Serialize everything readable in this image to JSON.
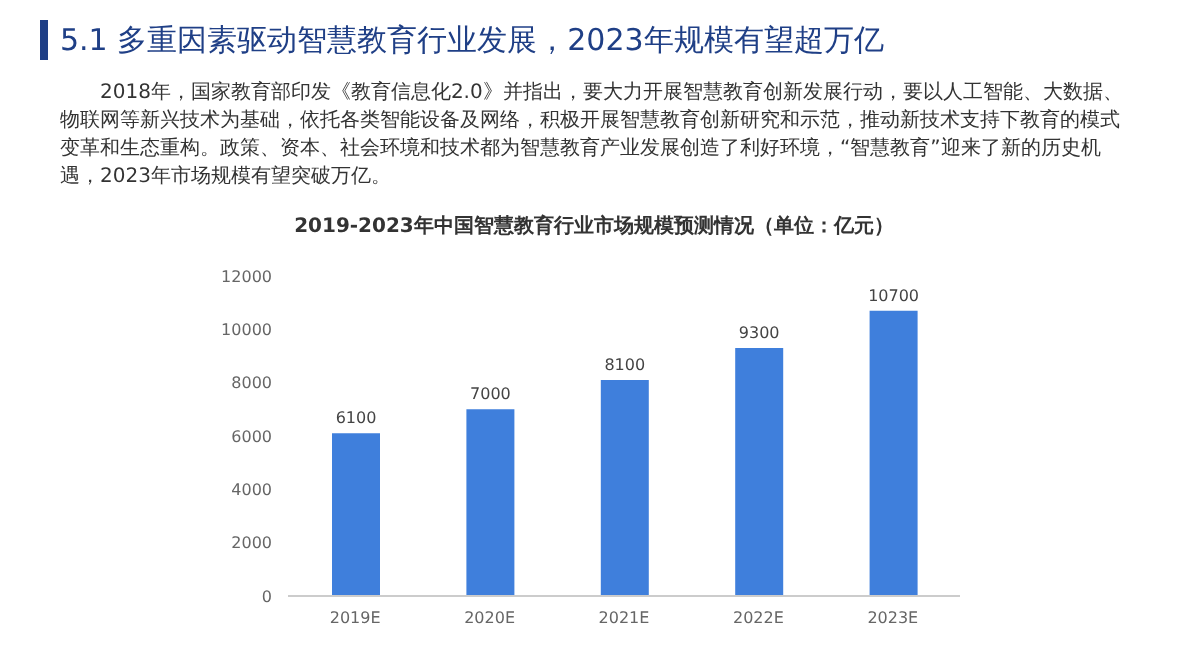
{
  "chart_data": {
    "type": "bar",
    "title": "5.1 多重因素驱动智慧教育行业发展，2023年规模有望超万亿",
    "subtitle": "2019-2023年中国智慧教育行业市场规模预测情况（单位：亿元）",
    "annotations": [
      "2018年，国家教育部印发《教育信息化2.0》并指出，要大力开展智慧教育创新发展行动，要以人工智能、大数据、物联网等新兴技术为基础，依托各类智能设备及网络，积极开展智慧教育创新研究和示范，推动新技术支持下教育的模式变革和生态重构。政策、资本、社会环境和技术都为智慧教育产业发展创造了利好环境，“智慧教育”迎来了新的历史机遇，2023年市场规模有望突破万亿。"
    ],
    "categories": [
      "2019E",
      "2020E",
      "2021E",
      "2022E",
      "2023E"
    ],
    "values": [
      6100,
      7000,
      8100,
      9300,
      10700
    ],
    "color": "#3f7fdc",
    "ylim": [
      0,
      12000
    ],
    "yticks": [
      0,
      2000,
      4000,
      6000,
      8000,
      10000,
      12000
    ],
    "data_labels": true
  }
}
